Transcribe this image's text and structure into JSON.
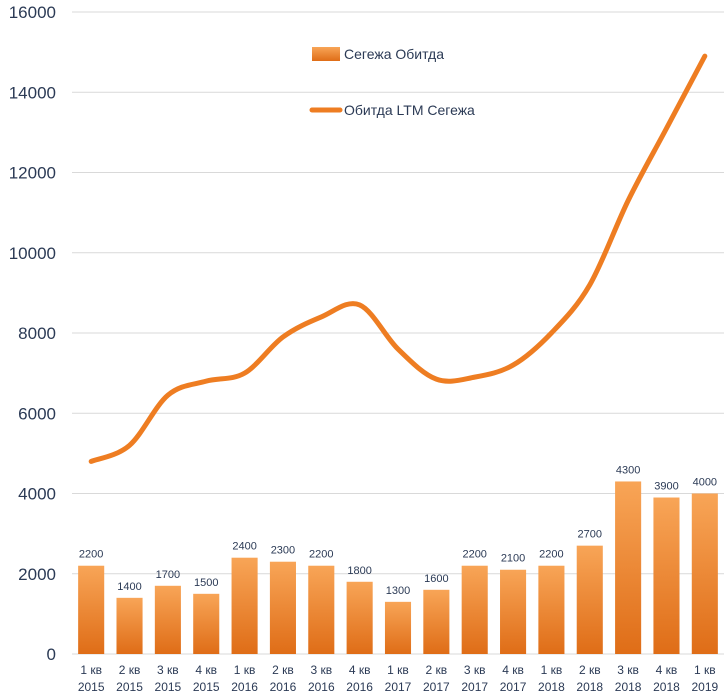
{
  "chart_data": {
    "type": "bar",
    "categories": [
      [
        "1 кв",
        "2015"
      ],
      [
        "2 кв",
        "2015"
      ],
      [
        "3 кв",
        "2015"
      ],
      [
        "4 кв",
        "2015"
      ],
      [
        "1 кв",
        "2016"
      ],
      [
        "2 кв",
        "2016"
      ],
      [
        "3 кв",
        "2016"
      ],
      [
        "4 кв",
        "2016"
      ],
      [
        "1 кв",
        "2017"
      ],
      [
        "2 кв",
        "2017"
      ],
      [
        "3 кв",
        "2017"
      ],
      [
        "4 кв",
        "2017"
      ],
      [
        "1 кв",
        "2018"
      ],
      [
        "2 кв",
        "2018"
      ],
      [
        "3 кв",
        "2018"
      ],
      [
        "4 кв",
        "2018"
      ],
      [
        "1 кв",
        "2019"
      ]
    ],
    "series": [
      {
        "name": "Сегежа Обитда",
        "type": "bar",
        "values": [
          2200,
          1400,
          1700,
          1500,
          2400,
          2300,
          2200,
          1800,
          1300,
          1600,
          2200,
          2100,
          2200,
          2700,
          4300,
          3900,
          4000
        ],
        "data_labels": [
          "2200",
          "1400",
          "1700",
          "1500",
          "2400",
          "2300",
          "2200",
          "1800",
          "1300",
          "1600",
          "2200",
          "2100",
          "2200",
          "2700",
          "4300",
          "3900",
          "4000"
        ]
      },
      {
        "name": "Обитда LTM Сегежа",
        "type": "line",
        "values": [
          4800,
          5200,
          6450,
          6800,
          7000,
          7900,
          8400,
          8700,
          7600,
          6850,
          6900,
          7200,
          8000,
          9200,
          11300,
          13100,
          14900
        ]
      }
    ],
    "ylim": [
      0,
      16000
    ],
    "yticks": [
      "0",
      "2000",
      "4000",
      "6000",
      "8000",
      "10000",
      "12000",
      "14000",
      "16000"
    ],
    "grid": true,
    "legend": "top-center",
    "colors": {
      "bar_top": "#f7a04e",
      "bar_bottom": "#e0701b",
      "line": "#ee7d22",
      "grid": "#d9d9d9",
      "text": "#2b3a55"
    }
  }
}
